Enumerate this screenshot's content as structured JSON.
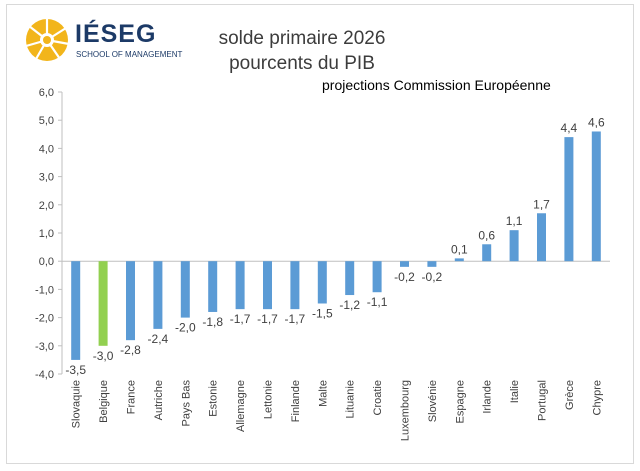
{
  "logo": {
    "name": "IÉSEG",
    "sub": "SCHOOL OF MANAGEMENT",
    "colors": {
      "sun": "#f2b51b",
      "text": "#1c3a67"
    }
  },
  "colors": {
    "bar": "#5b9bd5",
    "highlight": "#92d050",
    "axis": "#bfbfbf",
    "text": "#404040"
  },
  "chart_data": {
    "type": "bar",
    "title": "solde primaire 2026",
    "subtitle": "pourcents du PIB",
    "annotation": "projections Commission Européenne",
    "categories": [
      "Slovaquie",
      "Belgique",
      "France",
      "Autriche",
      "Pays Bas",
      "Estonie",
      "Allemagne",
      "Lettonie",
      "Finlande",
      "Malte",
      "Lituanie",
      "Croatie",
      "Luxembourg",
      "Slovénie",
      "Espagne",
      "Irlande",
      "Italie",
      "Portugal",
      "Grèce",
      "Chypre"
    ],
    "values": [
      -3.5,
      -3.0,
      -2.8,
      -2.4,
      -2.0,
      -1.8,
      -1.7,
      -1.7,
      -1.7,
      -1.5,
      -1.2,
      -1.1,
      -0.2,
      -0.2,
      0.1,
      0.6,
      1.1,
      1.7,
      4.4,
      4.6
    ],
    "value_labels": [
      "-3,5",
      "-3,0",
      "-2,8",
      "-2,4",
      "-2,0",
      "-1,8",
      "-1,7",
      "-1,7",
      "-1,7",
      "-1,5",
      "-1,2",
      "-1,1",
      "-0,2",
      "-0,2",
      "0,1",
      "0,6",
      "1,1",
      "1,7",
      "4,4",
      "4,6"
    ],
    "highlight_category": "Belgique",
    "ylim": [
      -4,
      6
    ],
    "yticks": [
      6,
      5,
      4,
      3,
      2,
      1,
      0,
      -1,
      -2,
      -3,
      -4
    ],
    "ytick_labels": [
      "6,0",
      "5,0",
      "4,0",
      "3,0",
      "2,0",
      "1,0",
      "0,0",
      "-1,0",
      "-2,0",
      "-3,0",
      "-4,0"
    ],
    "grid": false,
    "legend": "none"
  }
}
